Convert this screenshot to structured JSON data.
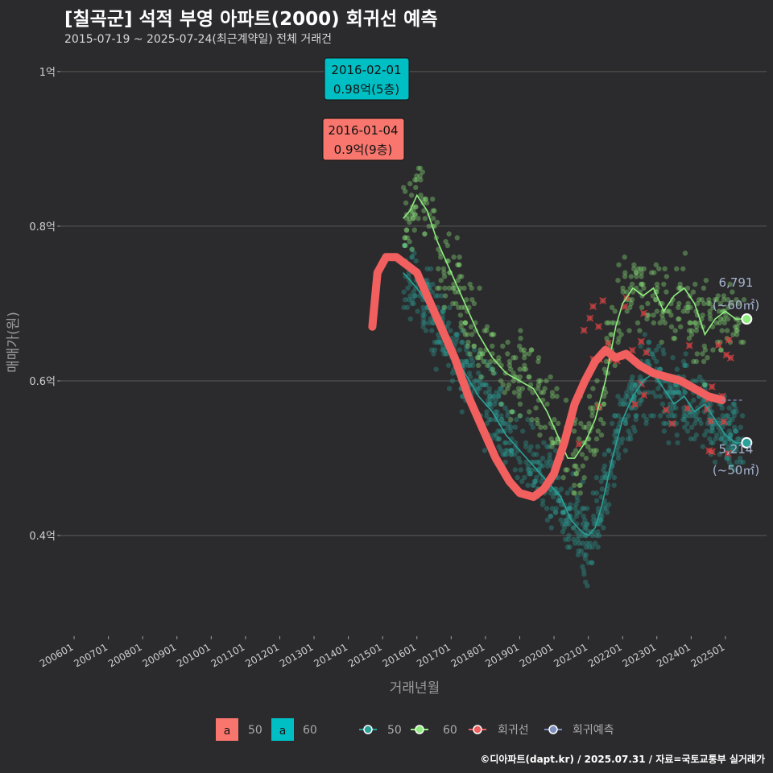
{
  "header": {
    "title": "[칠곡군] 석적 부영 아파트(2000) 회귀선 예측",
    "subtitle": "2015-07-19 ~ 2025-07-24(최근계약일) 전체 거래건"
  },
  "footer": {
    "credit": "©디아파트(dapt.kr) / 2025.07.31 / 자료=국토교통부 실거래가"
  },
  "colors": {
    "background": "#2b2b2d",
    "grid": "#5a5a5a",
    "series_50": "#2aa198",
    "series_60": "#90ee7e",
    "regression": "#f15f5f",
    "forecast": "#7f8fc0",
    "callout_50": "#f8766d",
    "callout_60": "#00bfc4"
  },
  "chart_data": {
    "type": "scatter",
    "xlabel": "거래년월",
    "ylabel": "매매가(원)",
    "x_ticks": [
      "200601",
      "200701",
      "200801",
      "200901",
      "201001",
      "201101",
      "201201",
      "201301",
      "201401",
      "201501",
      "201601",
      "201701",
      "201801",
      "201901",
      "202001",
      "202101",
      "202201",
      "202301",
      "202401",
      "202501"
    ],
    "x_range": [
      2005.6,
      2026.2
    ],
    "y_ticks": [
      {
        "value": 0.4,
        "label": "0.4억"
      },
      {
        "value": 0.6,
        "label": "0.6억"
      },
      {
        "value": 0.8,
        "label": "0.8억"
      },
      {
        "value": 1.0,
        "label": "1억"
      }
    ],
    "y_range": [
      0.27,
      1.03
    ],
    "grid": true,
    "series": [
      {
        "name": "50",
        "kind": "moving-average",
        "points": [
          [
            2015.6,
            0.74
          ],
          [
            2015.8,
            0.73
          ],
          [
            2016.0,
            0.72
          ],
          [
            2016.3,
            0.7
          ],
          [
            2016.6,
            0.67
          ],
          [
            2017.0,
            0.64
          ],
          [
            2017.4,
            0.61
          ],
          [
            2017.8,
            0.58
          ],
          [
            2018.2,
            0.56
          ],
          [
            2018.6,
            0.53
          ],
          [
            2019.0,
            0.51
          ],
          [
            2019.4,
            0.49
          ],
          [
            2019.8,
            0.47
          ],
          [
            2020.2,
            0.45
          ],
          [
            2020.5,
            0.42
          ],
          [
            2020.8,
            0.405
          ],
          [
            2021.0,
            0.4
          ],
          [
            2021.2,
            0.41
          ],
          [
            2021.4,
            0.44
          ],
          [
            2021.7,
            0.5
          ],
          [
            2022.0,
            0.55
          ],
          [
            2022.3,
            0.58
          ],
          [
            2022.6,
            0.6
          ],
          [
            2022.9,
            0.61
          ],
          [
            2023.2,
            0.59
          ],
          [
            2023.5,
            0.57
          ],
          [
            2023.8,
            0.58
          ],
          [
            2024.1,
            0.56
          ],
          [
            2024.4,
            0.57
          ],
          [
            2024.7,
            0.55
          ],
          [
            2025.0,
            0.53
          ],
          [
            2025.3,
            0.52
          ],
          [
            2025.55,
            0.52
          ]
        ]
      },
      {
        "name": "60",
        "kind": "moving-average",
        "points": [
          [
            2015.6,
            0.81
          ],
          [
            2015.8,
            0.82
          ],
          [
            2016.0,
            0.84
          ],
          [
            2016.3,
            0.82
          ],
          [
            2016.6,
            0.78
          ],
          [
            2017.0,
            0.74
          ],
          [
            2017.4,
            0.7
          ],
          [
            2017.8,
            0.66
          ],
          [
            2018.2,
            0.63
          ],
          [
            2018.6,
            0.61
          ],
          [
            2019.0,
            0.6
          ],
          [
            2019.4,
            0.59
          ],
          [
            2019.8,
            0.56
          ],
          [
            2020.2,
            0.52
          ],
          [
            2020.4,
            0.5
          ],
          [
            2020.6,
            0.5
          ],
          [
            2020.9,
            0.52
          ],
          [
            2021.2,
            0.55
          ],
          [
            2021.5,
            0.6
          ],
          [
            2021.8,
            0.67
          ],
          [
            2022.0,
            0.7
          ],
          [
            2022.3,
            0.72
          ],
          [
            2022.6,
            0.71
          ],
          [
            2022.9,
            0.72
          ],
          [
            2023.2,
            0.69
          ],
          [
            2023.5,
            0.71
          ],
          [
            2023.8,
            0.72
          ],
          [
            2024.1,
            0.7
          ],
          [
            2024.4,
            0.66
          ],
          [
            2024.7,
            0.68
          ],
          [
            2025.0,
            0.69
          ],
          [
            2025.3,
            0.68
          ],
          [
            2025.55,
            0.68
          ]
        ]
      },
      {
        "name": "회귀선",
        "kind": "regression",
        "points": [
          [
            2014.7,
            0.67
          ],
          [
            2014.85,
            0.74
          ],
          [
            2015.1,
            0.76
          ],
          [
            2015.4,
            0.76
          ],
          [
            2015.7,
            0.75
          ],
          [
            2016.0,
            0.74
          ],
          [
            2016.3,
            0.71
          ],
          [
            2016.7,
            0.67
          ],
          [
            2017.1,
            0.63
          ],
          [
            2017.5,
            0.58
          ],
          [
            2017.9,
            0.54
          ],
          [
            2018.3,
            0.5
          ],
          [
            2018.7,
            0.47
          ],
          [
            2019.0,
            0.455
          ],
          [
            2019.4,
            0.45
          ],
          [
            2019.7,
            0.46
          ],
          [
            2020.0,
            0.48
          ],
          [
            2020.3,
            0.52
          ],
          [
            2020.6,
            0.57
          ],
          [
            2020.9,
            0.6
          ],
          [
            2021.2,
            0.625
          ],
          [
            2021.5,
            0.64
          ],
          [
            2021.8,
            0.63
          ],
          [
            2022.1,
            0.635
          ],
          [
            2022.5,
            0.62
          ],
          [
            2022.9,
            0.61
          ],
          [
            2023.3,
            0.605
          ],
          [
            2023.7,
            0.6
          ],
          [
            2024.1,
            0.59
          ],
          [
            2024.5,
            0.58
          ],
          [
            2024.9,
            0.575
          ]
        ]
      },
      {
        "name": "회귀예측",
        "kind": "forecast",
        "points": [
          [
            2024.9,
            0.575
          ],
          [
            2025.55,
            0.575
          ]
        ]
      }
    ],
    "end_labels": [
      {
        "series": "60",
        "value": 0.68,
        "price": "6,791",
        "area": "(~60㎡)"
      },
      {
        "series": "50",
        "value": 0.52,
        "price": "5,214",
        "area": "(~50㎡)"
      }
    ],
    "callouts": [
      {
        "group": "60",
        "date": "2016-02-01",
        "text": "0.98억(5층)",
        "value": 0.98
      },
      {
        "group": "50",
        "date": "2016-01-04",
        "text": "0.9억(9층)",
        "value": 0.9
      }
    ],
    "legend": {
      "position": "bottom",
      "fill_items": [
        {
          "key": "a",
          "label": "50"
        },
        {
          "key": "a",
          "label": "60"
        }
      ],
      "line_items": [
        {
          "label": "50"
        },
        {
          "label": "60"
        },
        {
          "label": "회귀선"
        },
        {
          "label": "회귀예측"
        }
      ]
    }
  }
}
